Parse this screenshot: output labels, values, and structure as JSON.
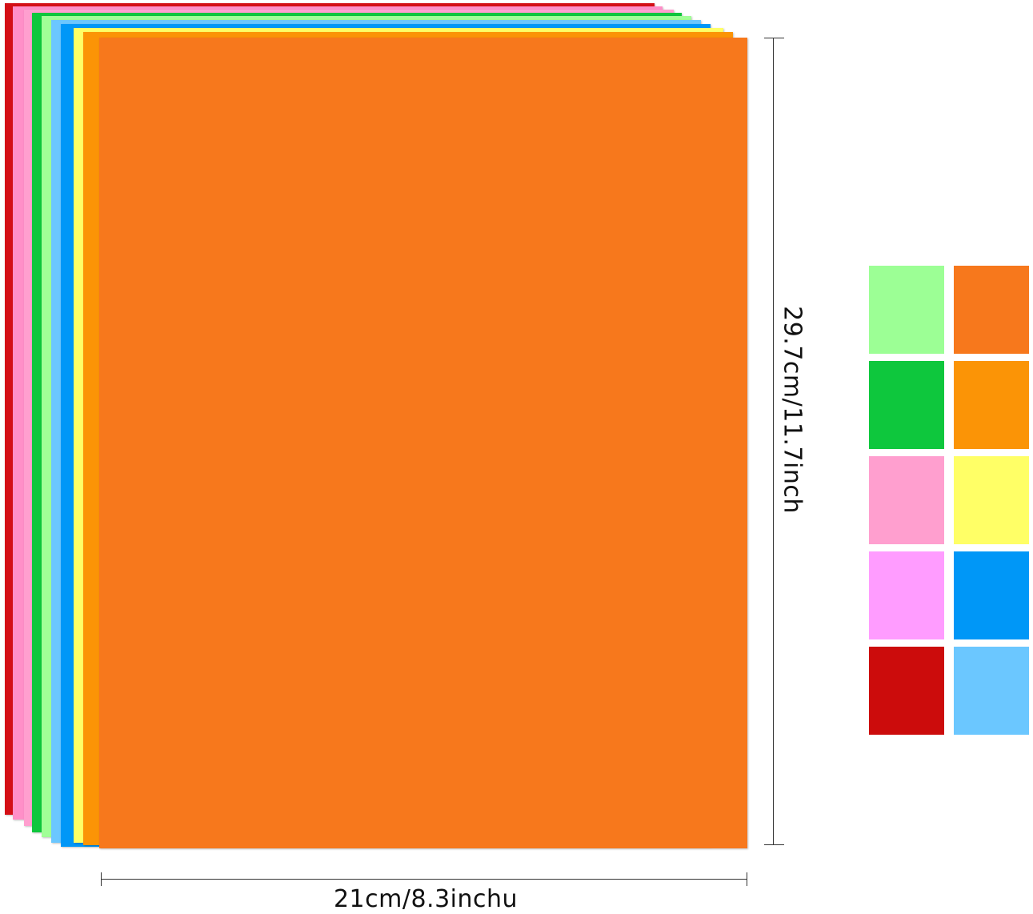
{
  "product": {
    "sheet_colors": [
      "#d40f16",
      "#ff8fc8",
      "#ff9fcf",
      "#0ec73d",
      "#a1ff97",
      "#6bc7ff",
      "#0097f7",
      "#ffff66",
      "#fb9406",
      "#f7781c"
    ],
    "swatch_colors": [
      "#9cff95",
      "#f7781c",
      "#0ec73d",
      "#fb9406",
      "#ff9fcf",
      "#ffff66",
      "#ff9cff",
      "#0097f7",
      "#cc0c0c",
      "#6bc7ff"
    ]
  },
  "dimensions": {
    "height_label": "29.7cm/11.7inch",
    "width_label": "21cm/8.3inchu"
  }
}
